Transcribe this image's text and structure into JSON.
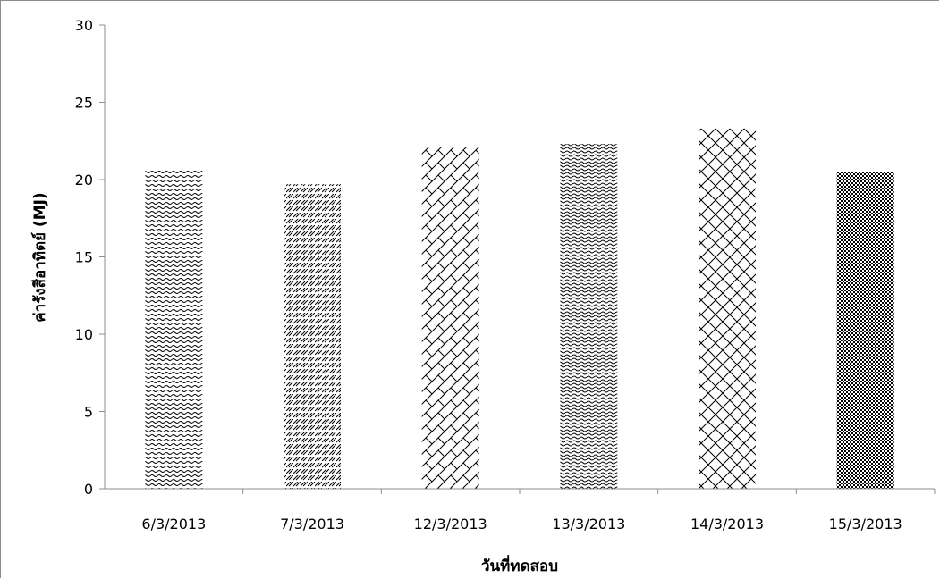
{
  "chart_data": {
    "type": "bar",
    "categories": [
      "6/3/2013",
      "7/3/2013",
      "12/3/2013",
      "13/3/2013",
      "14/3/2013",
      "15/3/2013"
    ],
    "values": [
      20.6,
      19.7,
      22.1,
      22.3,
      23.3,
      20.5
    ],
    "xlabel": "วันที่ทดสอบ",
    "ylabel": "ค่ารังสีอาทิตย์ (MJ)",
    "ylim": [
      0,
      30
    ],
    "yticks": [
      0,
      5,
      10,
      15,
      20,
      25,
      30
    ],
    "grid": false,
    "legend": "none",
    "bar_patterns": [
      "wave",
      "diagonal-hatch",
      "brick-diagonal",
      "dense-wave",
      "diagonal-cross",
      "checker"
    ]
  }
}
